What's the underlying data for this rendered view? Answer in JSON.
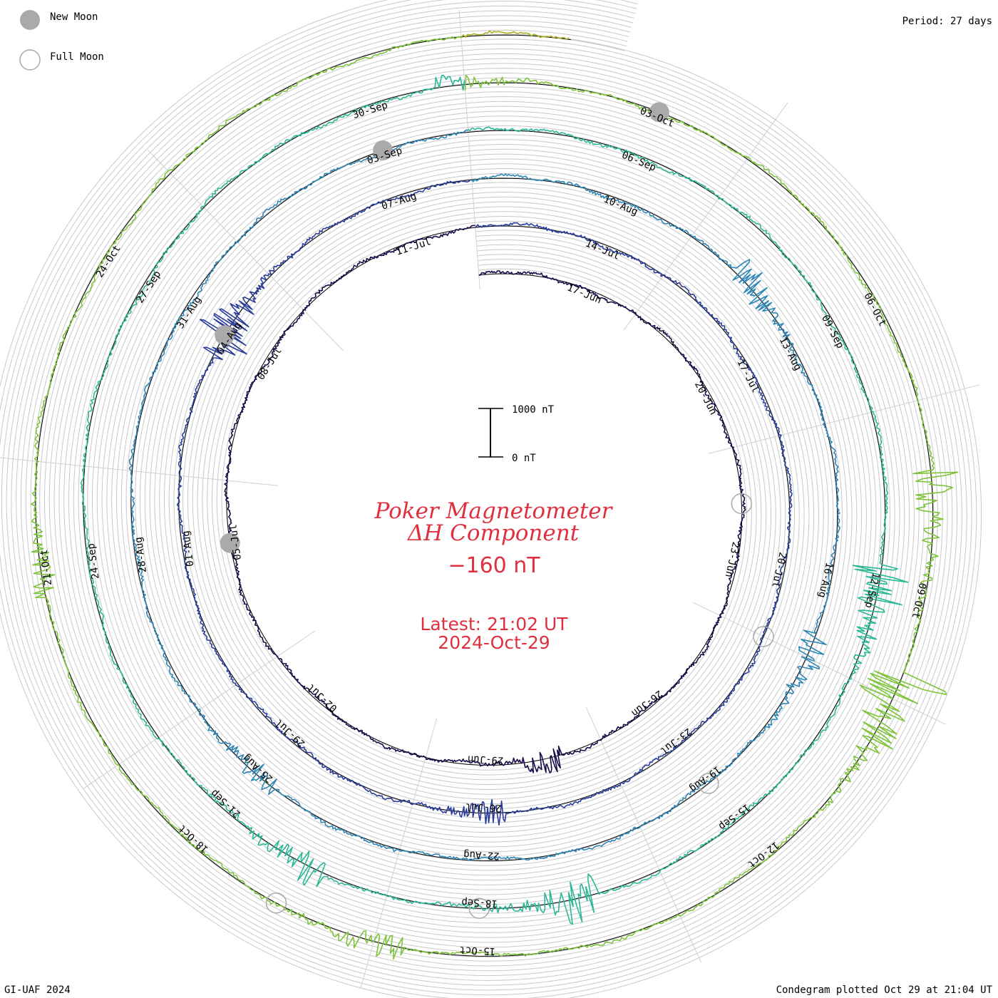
{
  "legend": {
    "new_moon_label": "New Moon",
    "full_moon_label": "Full Moon"
  },
  "period_label": "Period: 27 days",
  "footer_left": "GI-UAF 2024",
  "footer_right": "Condegram plotted Oct 29 at 21:04 UT",
  "chart_data": {
    "type": "line",
    "title_line1": "Poker Magnetometer",
    "title_line2": "ΔH Component",
    "latest_value": "−160 nT",
    "latest_time": "Latest: 21:02 UT",
    "latest_date": "2024-Oct-29",
    "scale": {
      "top_label": "1000 nT",
      "bottom_label": "0 nT",
      "top_value": 1000,
      "bottom_value": 0
    },
    "period_days": 27,
    "start_date": "2024-06-15",
    "end_date": "2024-10-29",
    "colors": [
      "#1a0a4a",
      "#2a3d9a",
      "#2e86b5",
      "#2ab896",
      "#7ec33a",
      "#a9b020",
      "#b88a18",
      "#c04818",
      "#c01818"
    ],
    "date_labels": [
      "17-Jun",
      "20-Jun",
      "23-Jun",
      "26-Jun",
      "29-Jun",
      "02-Jul",
      "05-Jul",
      "08-Jul",
      "11-Jul",
      "14-Jul",
      "17-Jul",
      "20-Jul",
      "23-Jul",
      "26-Jul",
      "29-Jul",
      "01-Aug",
      "04-Aug",
      "07-Aug",
      "10-Aug",
      "13-Aug",
      "16-Aug",
      "19-Aug",
      "22-Aug",
      "25-Aug",
      "28-Aug",
      "31-Aug",
      "03-Sep",
      "06-Sep",
      "09-Sep",
      "12-Sep",
      "15-Sep",
      "18-Sep",
      "21-Sep",
      "24-Sep",
      "27-Sep",
      "30-Sep",
      "03-Oct",
      "06-Oct",
      "09-Oct",
      "12-Oct",
      "15-Oct",
      "18-Oct",
      "21-Oct",
      "24-Oct"
    ],
    "new_moons": [
      "2024-07-05",
      "2024-08-04",
      "2024-09-03",
      "2024-10-03"
    ],
    "full_moons": [
      "2024-06-22",
      "2024-07-21",
      "2024-08-19",
      "2024-09-18",
      "2024-10-17"
    ],
    "disturbances": [
      {
        "date": "2024-06-28",
        "magnitude_nT": 400
      },
      {
        "date": "2024-07-26",
        "magnitude_nT": 350
      },
      {
        "date": "2024-08-04",
        "magnitude_nT": 900
      },
      {
        "date": "2024-08-12",
        "magnitude_nT": 500
      },
      {
        "date": "2024-08-17",
        "magnitude_nT": 450
      },
      {
        "date": "2024-08-25",
        "magnitude_nT": 350
      },
      {
        "date": "2024-09-12",
        "magnitude_nT": 900
      },
      {
        "date": "2024-09-17",
        "magnitude_nT": 700
      },
      {
        "date": "2024-09-20",
        "magnitude_nT": 500
      },
      {
        "date": "2024-10-01",
        "magnitude_nT": 300
      },
      {
        "date": "2024-10-08",
        "magnitude_nT": 700
      },
      {
        "date": "2024-10-10",
        "magnitude_nT": 1400
      },
      {
        "date": "2024-10-16",
        "magnitude_nT": 400
      },
      {
        "date": "2024-10-21",
        "magnitude_nT": 350
      }
    ]
  }
}
